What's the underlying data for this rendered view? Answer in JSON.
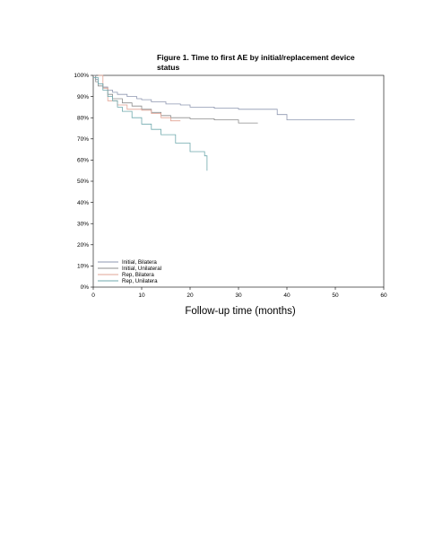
{
  "chart_data": {
    "type": "line",
    "step": true,
    "title": "Figure 1. Time to first AE by initial/replacement device status",
    "xlabel": "Follow-up time (months)",
    "ylabel": "",
    "xlim": [
      0,
      60
    ],
    "ylim": [
      0,
      1
    ],
    "xticks": [
      "0",
      "10",
      "20",
      "30",
      "40",
      "50",
      "60"
    ],
    "yticks": [
      "0%",
      "10%",
      "20%",
      "30%",
      "40%",
      "50%",
      "60%",
      "70%",
      "80%",
      "90%",
      "100%"
    ],
    "grid": false,
    "legend_position": "bottom-left",
    "series": [
      {
        "name": "Initial, Bilatera",
        "color": "#8e97b0",
        "points": [
          [
            0,
            1.0
          ],
          [
            0.5,
            0.98
          ],
          [
            1,
            0.96
          ],
          [
            2,
            0.945
          ],
          [
            3,
            0.93
          ],
          [
            4,
            0.92
          ],
          [
            5,
            0.91
          ],
          [
            7,
            0.9
          ],
          [
            9,
            0.89
          ],
          [
            10,
            0.885
          ],
          [
            12,
            0.875
          ],
          [
            15,
            0.865
          ],
          [
            18,
            0.86
          ],
          [
            20,
            0.85
          ],
          [
            25,
            0.845
          ],
          [
            30,
            0.84
          ],
          [
            35,
            0.84
          ],
          [
            38,
            0.815
          ],
          [
            40,
            0.79
          ],
          [
            45,
            0.79
          ],
          [
            54,
            0.79
          ]
        ]
      },
      {
        "name": "Initial, Unilateral",
        "color": "#8c8c8c",
        "points": [
          [
            0,
            1.0
          ],
          [
            0.5,
            0.97
          ],
          [
            1,
            0.95
          ],
          [
            2,
            0.94
          ],
          [
            3,
            0.91
          ],
          [
            4,
            0.89
          ],
          [
            6,
            0.87
          ],
          [
            8,
            0.855
          ],
          [
            10,
            0.84
          ],
          [
            12,
            0.825
          ],
          [
            14,
            0.81
          ],
          [
            16,
            0.8
          ],
          [
            20,
            0.795
          ],
          [
            25,
            0.79
          ],
          [
            30,
            0.775
          ],
          [
            34,
            0.775
          ]
        ]
      },
      {
        "name": "Rep, Bilatera",
        "color": "#e2a494",
        "points": [
          [
            1,
            1.0
          ],
          [
            2,
            0.94
          ],
          [
            3,
            0.88
          ],
          [
            5,
            0.86
          ],
          [
            7,
            0.84
          ],
          [
            10,
            0.835
          ],
          [
            12,
            0.82
          ],
          [
            14,
            0.8
          ],
          [
            16,
            0.785
          ],
          [
            18,
            0.785
          ]
        ]
      },
      {
        "name": "Rep, Unilatera",
        "color": "#6fa9ad",
        "points": [
          [
            0,
            0.99
          ],
          [
            1,
            0.96
          ],
          [
            2,
            0.93
          ],
          [
            3,
            0.9
          ],
          [
            4,
            0.88
          ],
          [
            5,
            0.85
          ],
          [
            6,
            0.83
          ],
          [
            8,
            0.8
          ],
          [
            10,
            0.77
          ],
          [
            12,
            0.745
          ],
          [
            14,
            0.72
          ],
          [
            17,
            0.68
          ],
          [
            20,
            0.64
          ],
          [
            23,
            0.62
          ],
          [
            23.5,
            0.56
          ],
          [
            23.5,
            0.55
          ]
        ]
      }
    ]
  }
}
